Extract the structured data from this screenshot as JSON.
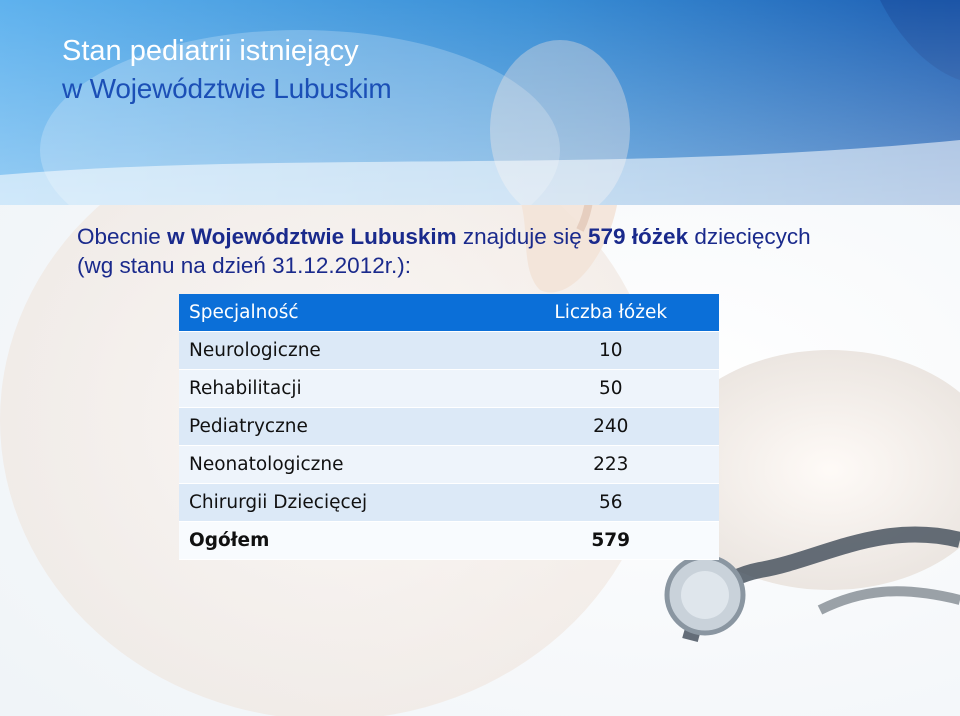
{
  "header": {
    "title_line1": "Stan pediatrii istniejący",
    "title_line2": "w Województwie Lubuskim"
  },
  "intro": {
    "p1": "Obecnie ",
    "region": "w Województwie Lubuskim",
    "p2": " znajduje się ",
    "beds": "579 łóżek",
    "p3": " dziecięcych",
    "p4": "(wg stanu na dzień 31.12.2012r.):"
  },
  "table": {
    "col_specialty": "Specjalność",
    "col_beds": "Liczba łóżek",
    "rows": [
      {
        "name": "Neurologiczne",
        "value": "10"
      },
      {
        "name": "Rehabilitacji",
        "value": "50"
      },
      {
        "name": "Pediatryczne",
        "value": "240"
      },
      {
        "name": "Neonatologiczne",
        "value": "223"
      },
      {
        "name": "Chirurgii Dziecięcej",
        "value": "56"
      }
    ],
    "total": {
      "name": "Ogółem",
      "value": "579"
    }
  },
  "colors": {
    "header_blue": "#3a8fd6",
    "title_dark_blue": "#1b4fb6",
    "table_header": "#0b6fd8",
    "row_light": "#dce9f7",
    "intro_text": "#1a2a8c"
  }
}
